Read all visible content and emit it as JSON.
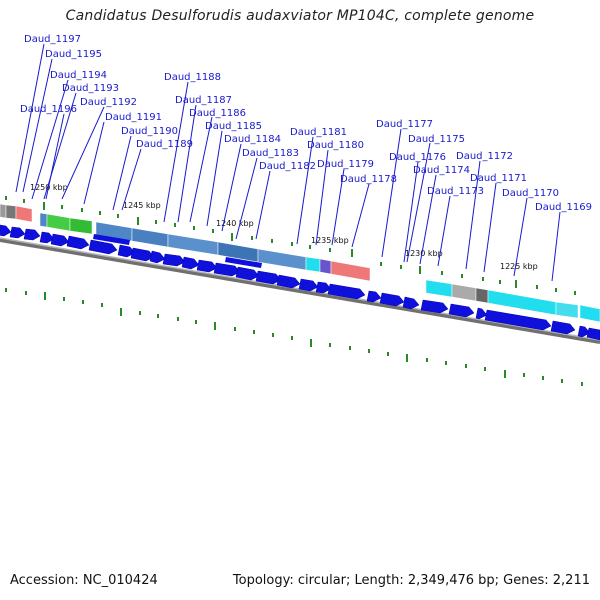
{
  "title": "Candidatus Desulforudis audaxviator MP104C, complete genome",
  "footer": {
    "accession": "Accession: NC_010424",
    "summary": "Topology: circular; Length: 2,349,476 bp; Genes: 2,211"
  },
  "scale_labels": [
    "1250 kbp",
    "1245 kbp",
    "1240 kbp",
    "1235 kbp",
    "1230 kbp",
    "1225 kbp"
  ],
  "gene_labels": [
    "Daud_1197",
    "Daud_1195",
    "Daud_1194",
    "Daud_1193",
    "Daud_1196",
    "Daud_1192",
    "Daud_1191",
    "Daud_1190",
    "Daud_1189",
    "Daud_1188",
    "Daud_1187",
    "Daud_1186",
    "Daud_1185",
    "Daud_1184",
    "Daud_1183",
    "Daud_1182",
    "Daud_1181",
    "Daud_1180",
    "Daud_1179",
    "Daud_1178",
    "Daud_1177",
    "Daud_1175",
    "Daud_1176",
    "Daud_1174",
    "Daud_1173",
    "Daud_1172",
    "Daud_1171",
    "Daud_1170",
    "Daud_1169"
  ],
  "colors": {
    "label": "#1a1acc",
    "arrow": "#1010dd",
    "tick": "#2a8a2a",
    "backbone": "#707070",
    "cog_blue": "#4f86c6",
    "cog_green": "#44cc44",
    "cog_cyan": "#22ddee",
    "cog_pink": "#ee7777",
    "cog_grey": "#999999"
  }
}
